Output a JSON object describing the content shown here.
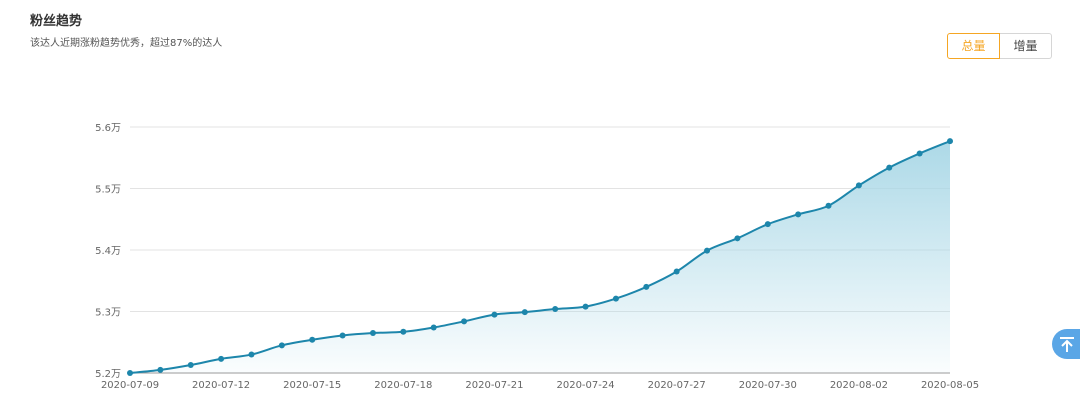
{
  "header": {
    "title": "粉丝趋势",
    "subtitle": "该达人近期涨粉趋势优秀，超过87%的达人"
  },
  "toggle": {
    "active_label": "总量",
    "other_label": "增量",
    "active_color": "#f5a623"
  },
  "back_to_top_icon": "arrow-up-to-top-icon",
  "colors": {
    "line": "#1d86ab",
    "area": "#a8d7e6"
  },
  "chart_data": {
    "type": "area",
    "ylim": [
      52000,
      56000
    ],
    "yticks": [
      52000,
      53000,
      54000,
      55000,
      56000
    ],
    "ytick_labels": [
      "5.2万",
      "5.3万",
      "5.4万",
      "5.5万",
      "5.6万"
    ],
    "x": [
      "2020-07-09",
      "2020-07-10",
      "2020-07-11",
      "2020-07-12",
      "2020-07-13",
      "2020-07-14",
      "2020-07-15",
      "2020-07-16",
      "2020-07-17",
      "2020-07-18",
      "2020-07-19",
      "2020-07-20",
      "2020-07-21",
      "2020-07-22",
      "2020-07-23",
      "2020-07-24",
      "2020-07-25",
      "2020-07-26",
      "2020-07-27",
      "2020-07-28",
      "2020-07-29",
      "2020-07-30",
      "2020-07-31",
      "2020-08-01",
      "2020-08-02",
      "2020-08-03",
      "2020-08-04",
      "2020-08-05"
    ],
    "xtick_labels": [
      "2020-07-09",
      "2020-07-12",
      "2020-07-15",
      "2020-07-18",
      "2020-07-21",
      "2020-07-24",
      "2020-07-27",
      "2020-07-30",
      "2020-08-02",
      "2020-08-05"
    ],
    "series": [
      {
        "values": [
          52000,
          52050,
          52130,
          52230,
          52300,
          52450,
          52540,
          52610,
          52650,
          52670,
          52740,
          52840,
          52950,
          52990,
          53040,
          53080,
          53210,
          53400,
          53650,
          53990,
          54190,
          54420,
          54580,
          54720,
          55050,
          55340,
          55570,
          55770
        ]
      }
    ],
    "grid": true,
    "legend": "none"
  }
}
